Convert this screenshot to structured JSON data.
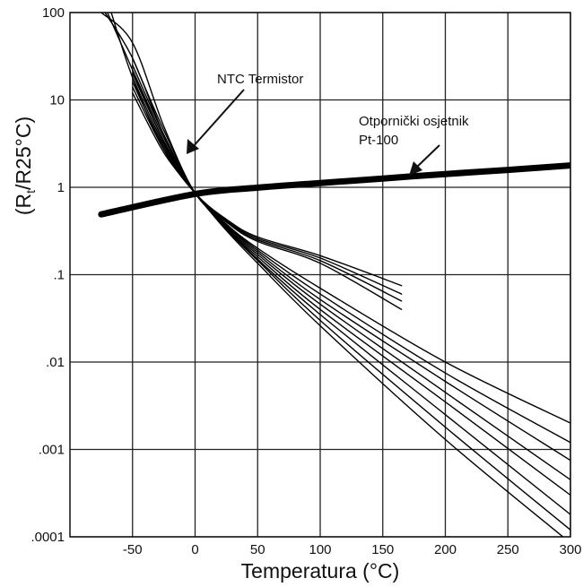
{
  "chart_data": {
    "type": "line",
    "xlabel": "Temperatura (°C)",
    "ylabel": "(Rt/R25°C)",
    "ylabel_main": "(R",
    "ylabel_sub": "t",
    "ylabel_rest": "/R25°C)",
    "xlim": [
      -100,
      300
    ],
    "ylim": [
      0.0001,
      100
    ],
    "yscale": "log",
    "grid": true,
    "xticks": [
      -50,
      0,
      50,
      100,
      150,
      200,
      250,
      300
    ],
    "xtick_labels": [
      "-50",
      "0",
      "50",
      "100",
      "150",
      "200",
      "250",
      "300"
    ],
    "yticks": [
      100,
      10,
      1,
      0.1,
      0.01,
      0.001,
      0.0001
    ],
    "ytick_labels": [
      "100",
      "10",
      "1",
      ".1",
      ".01",
      ".001",
      ".0001"
    ],
    "annotations": {
      "ntc": "NTC Termistor",
      "pt_line1": "Otpornički osjetnik",
      "pt_line2": "Pt-100"
    },
    "series": [
      {
        "name": "Pt-100",
        "x": [
          -75,
          0,
          50,
          100,
          150,
          200,
          250,
          300
        ],
        "y": [
          0.49,
          0.84,
          0.99,
          1.12,
          1.26,
          1.42,
          1.58,
          1.78
        ]
      },
      {
        "x": [
          -75,
          -50,
          -25,
          0,
          25,
          50,
          100,
          165
        ],
        "y": [
          100,
          45,
          5.0,
          0.86,
          0.4,
          0.24,
          0.135,
          0.04
        ]
      },
      {
        "x": [
          -72,
          -50,
          -25,
          0,
          25,
          50,
          100,
          165
        ],
        "y": [
          100,
          30,
          4.0,
          0.86,
          0.41,
          0.25,
          0.145,
          0.05
        ]
      },
      {
        "x": [
          -70,
          -50,
          -25,
          0,
          25,
          50,
          100,
          165
        ],
        "y": [
          100,
          22,
          3.3,
          0.86,
          0.42,
          0.26,
          0.155,
          0.06
        ]
      },
      {
        "x": [
          -67,
          -50,
          -25,
          0,
          25,
          50,
          100,
          165
        ],
        "y": [
          100,
          18,
          2.7,
          0.86,
          0.43,
          0.27,
          0.165,
          0.075
        ]
      },
      {
        "x": [
          -50,
          -25,
          0,
          25,
          50,
          100,
          200,
          300
        ],
        "y": [
          30,
          4.5,
          0.86,
          0.38,
          0.2,
          0.07,
          0.01,
          0.002
        ]
      },
      {
        "x": [
          -50,
          -25,
          0,
          25,
          50,
          100,
          200,
          300
        ],
        "y": [
          25,
          4.0,
          0.86,
          0.37,
          0.19,
          0.06,
          0.0075,
          0.0012
        ]
      },
      {
        "x": [
          -50,
          -25,
          0,
          25,
          50,
          100,
          200,
          300
        ],
        "y": [
          22,
          3.7,
          0.86,
          0.36,
          0.18,
          0.052,
          0.006,
          0.00075
        ]
      },
      {
        "x": [
          -50,
          -25,
          0,
          25,
          50,
          100,
          200,
          300
        ],
        "y": [
          20,
          3.4,
          0.86,
          0.35,
          0.17,
          0.046,
          0.0045,
          0.00045
        ]
      },
      {
        "x": [
          -50,
          -25,
          0,
          25,
          50,
          100,
          200,
          300
        ],
        "y": [
          18,
          3.1,
          0.86,
          0.34,
          0.16,
          0.04,
          0.0035,
          0.0003
        ]
      },
      {
        "x": [
          -50,
          -25,
          0,
          25,
          50,
          100,
          200,
          300
        ],
        "y": [
          16,
          2.9,
          0.86,
          0.34,
          0.15,
          0.035,
          0.0025,
          0.00018
        ]
      },
      {
        "x": [
          -50,
          -25,
          0,
          25,
          50,
          100,
          200,
          300
        ],
        "y": [
          14,
          2.7,
          0.86,
          0.33,
          0.145,
          0.03,
          0.0018,
          0.00012
        ]
      },
      {
        "x": [
          -50,
          -25,
          0,
          25,
          50,
          100,
          200,
          300
        ],
        "y": [
          12,
          2.5,
          0.86,
          0.32,
          0.135,
          0.026,
          0.0013,
          8.5e-05
        ]
      }
    ]
  }
}
